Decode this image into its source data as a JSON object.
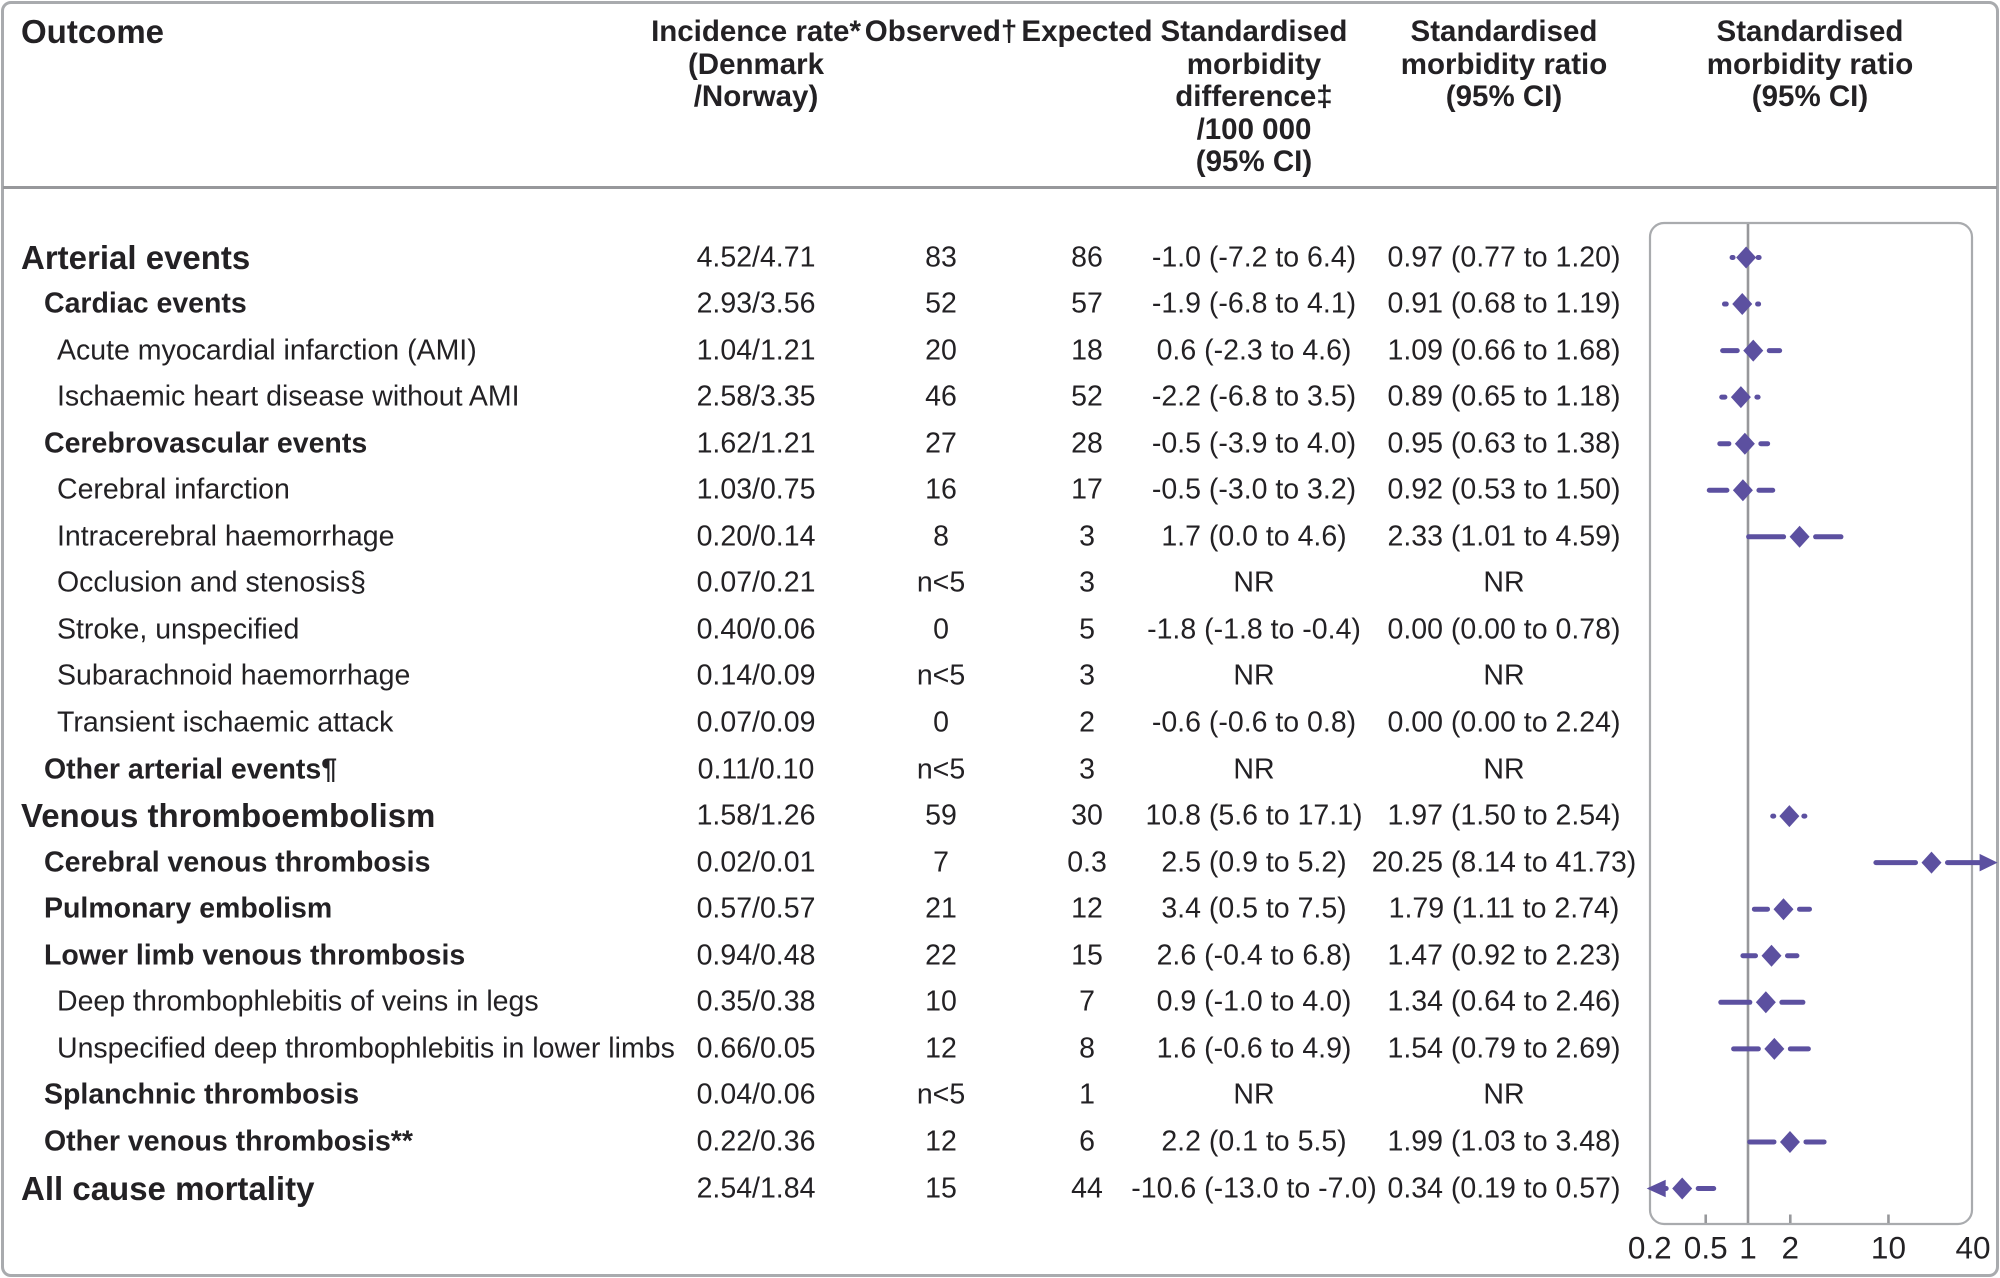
{
  "colors": {
    "accent_purple": "#5c50a0",
    "grid_gray": "#97989b",
    "border_gray": "#a9abae",
    "text": "#232124"
  },
  "chart_data": {
    "type": "forest",
    "title": "Standardised morbidity ratio (95% CI)",
    "columns": {
      "outcome": "Outcome",
      "incidence_lines": [
        "Incidence rate*",
        "(Denmark",
        "/Norway)"
      ],
      "observed": "Observed†",
      "expected": "Expected",
      "smd_lines": [
        "Standardised",
        "morbidity",
        "difference‡",
        "/100 000",
        "(95% CI)"
      ],
      "smr_lines": [
        "Standardised",
        "morbidity ratio",
        "(95% CI)"
      ],
      "plot_lines": [
        "Standardised",
        "morbidity ratio",
        "(95% CI)"
      ]
    },
    "x_axis": {
      "scale": "log",
      "min": 0.2,
      "max": 40,
      "reference_line": 1,
      "tick_labels": [
        "0.2",
        "0.5",
        "1",
        "2",
        "10",
        "40"
      ],
      "tick_values": [
        0.2,
        0.5,
        1,
        2,
        10,
        40
      ],
      "minor_tick_values": [
        0.5,
        2,
        10
      ],
      "legend_position": "none",
      "grid": false
    },
    "rows": [
      {
        "label": "Arterial events",
        "indent": 0,
        "bold": true,
        "large": true,
        "incidence": "4.52/4.71",
        "observed": "83",
        "expected": "86",
        "smd": "-1.0 (-7.2 to 6.4)",
        "smr": "0.97 (0.77 to 1.20)",
        "est": 0.97,
        "lo": 0.77,
        "hi": 1.2
      },
      {
        "label": "Cardiac events",
        "indent": 1,
        "bold": true,
        "large": false,
        "incidence": "2.93/3.56",
        "observed": "52",
        "expected": "57",
        "smd": "-1.9 (-6.8 to 4.1)",
        "smr": "0.91 (0.68 to 1.19)",
        "est": 0.91,
        "lo": 0.68,
        "hi": 1.19
      },
      {
        "label": "Acute myocardial infarction (AMI)",
        "indent": 2,
        "bold": false,
        "large": false,
        "incidence": "1.04/1.21",
        "observed": "20",
        "expected": "18",
        "smd": "0.6 (-2.3 to 4.6)",
        "smr": "1.09 (0.66 to 1.68)",
        "est": 1.09,
        "lo": 0.66,
        "hi": 1.68
      },
      {
        "label": "Ischaemic heart disease without AMI",
        "indent": 2,
        "bold": false,
        "large": false,
        "incidence": "2.58/3.35",
        "observed": "46",
        "expected": "52",
        "smd": "-2.2 (-6.8 to 3.5)",
        "smr": "0.89 (0.65 to 1.18)",
        "est": 0.89,
        "lo": 0.65,
        "hi": 1.18
      },
      {
        "label": "Cerebrovascular events",
        "indent": 1,
        "bold": true,
        "large": false,
        "incidence": "1.62/1.21",
        "observed": "27",
        "expected": "28",
        "smd": "-0.5 (-3.9 to 4.0)",
        "smr": "0.95 (0.63 to 1.38)",
        "est": 0.95,
        "lo": 0.63,
        "hi": 1.38
      },
      {
        "label": "Cerebral infarction",
        "indent": 2,
        "bold": false,
        "large": false,
        "incidence": "1.03/0.75",
        "observed": "16",
        "expected": "17",
        "smd": "-0.5 (-3.0 to 3.2)",
        "smr": "0.92 (0.53 to 1.50)",
        "est": 0.92,
        "lo": 0.53,
        "hi": 1.5
      },
      {
        "label": "Intracerebral haemorrhage",
        "indent": 2,
        "bold": false,
        "large": false,
        "incidence": "0.20/0.14",
        "observed": "8",
        "expected": "3",
        "smd": "1.7 (0.0 to 4.6)",
        "smr": "2.33 (1.01 to 4.59)",
        "est": 2.33,
        "lo": 1.01,
        "hi": 4.59
      },
      {
        "label": "Occlusion and stenosis§",
        "indent": 2,
        "bold": false,
        "large": false,
        "incidence": "0.07/0.21",
        "observed": "n<5",
        "expected": "3",
        "smd": "NR",
        "smr": "NR",
        "est": null,
        "lo": null,
        "hi": null
      },
      {
        "label": "Stroke, unspecified",
        "indent": 2,
        "bold": false,
        "large": false,
        "incidence": "0.40/0.06",
        "observed": "0",
        "expected": "5",
        "smd": "-1.8 (-1.8 to -0.4)",
        "smr": "0.00 (0.00 to 0.78)",
        "est": null,
        "lo": null,
        "hi": null
      },
      {
        "label": "Subarachnoid haemorrhage",
        "indent": 2,
        "bold": false,
        "large": false,
        "incidence": "0.14/0.09",
        "observed": "n<5",
        "expected": "3",
        "smd": "NR",
        "smr": "NR",
        "est": null,
        "lo": null,
        "hi": null
      },
      {
        "label": "Transient ischaemic attack",
        "indent": 2,
        "bold": false,
        "large": false,
        "incidence": "0.07/0.09",
        "observed": "0",
        "expected": "2",
        "smd": "-0.6 (-0.6 to 0.8)",
        "smr": "0.00 (0.00 to 2.24)",
        "est": null,
        "lo": null,
        "hi": null
      },
      {
        "label": "Other arterial events¶",
        "indent": 1,
        "bold": true,
        "large": false,
        "incidence": "0.11/0.10",
        "observed": "n<5",
        "expected": "3",
        "smd": "NR",
        "smr": "NR",
        "est": null,
        "lo": null,
        "hi": null
      },
      {
        "label": "Venous thromboembolism",
        "indent": 0,
        "bold": true,
        "large": true,
        "incidence": "1.58/1.26",
        "observed": "59",
        "expected": "30",
        "smd": "10.8 (5.6 to 17.1)",
        "smr": "1.97 (1.50 to 2.54)",
        "est": 1.97,
        "lo": 1.5,
        "hi": 2.54
      },
      {
        "label": "Cerebral venous thrombosis",
        "indent": 1,
        "bold": true,
        "large": false,
        "incidence": "0.02/0.01",
        "observed": "7",
        "expected": "0.3",
        "smd": "2.5 (0.9 to 5.2)",
        "smr": "20.25 (8.14 to 41.73)",
        "est": 20.25,
        "lo": 8.14,
        "hi": 41.73
      },
      {
        "label": "Pulmonary embolism",
        "indent": 1,
        "bold": true,
        "large": false,
        "incidence": "0.57/0.57",
        "observed": "21",
        "expected": "12",
        "smd": "3.4 (0.5 to 7.5)",
        "smr": "1.79 (1.11 to 2.74)",
        "est": 1.79,
        "lo": 1.11,
        "hi": 2.74
      },
      {
        "label": "Lower limb venous thrombosis",
        "indent": 1,
        "bold": true,
        "large": false,
        "incidence": "0.94/0.48",
        "observed": "22",
        "expected": "15",
        "smd": "2.6 (-0.4 to 6.8)",
        "smr": "1.47 (0.92 to 2.23)",
        "est": 1.47,
        "lo": 0.92,
        "hi": 2.23
      },
      {
        "label": "Deep thrombophlebitis of veins in legs",
        "indent": 2,
        "bold": false,
        "large": false,
        "incidence": "0.35/0.38",
        "observed": "10",
        "expected": "7",
        "smd": "0.9 (-1.0 to 4.0)",
        "smr": "1.34 (0.64 to 2.46)",
        "est": 1.34,
        "lo": 0.64,
        "hi": 2.46
      },
      {
        "label": "Unspecified deep thrombophlebitis in lower limbs",
        "indent": 2,
        "bold": false,
        "large": false,
        "incidence": "0.66/0.05",
        "observed": "12",
        "expected": "8",
        "smd": "1.6 (-0.6 to 4.9)",
        "smr": "1.54 (0.79 to 2.69)",
        "est": 1.54,
        "lo": 0.79,
        "hi": 2.69
      },
      {
        "label": "Splanchnic thrombosis",
        "indent": 1,
        "bold": true,
        "large": false,
        "incidence": "0.04/0.06",
        "observed": "n<5",
        "expected": "1",
        "smd": "NR",
        "smr": "NR",
        "est": null,
        "lo": null,
        "hi": null
      },
      {
        "label": "Other venous thrombosis**",
        "indent": 1,
        "bold": true,
        "large": false,
        "incidence": "0.22/0.36",
        "observed": "12",
        "expected": "6",
        "smd": "2.2 (0.1 to 5.5)",
        "smr": "1.99 (1.03 to 3.48)",
        "est": 1.99,
        "lo": 1.03,
        "hi": 3.48
      },
      {
        "label": "All cause mortality",
        "indent": 0,
        "bold": true,
        "large": true,
        "incidence": "2.54/1.84",
        "observed": "15",
        "expected": "44",
        "smd": "-10.6 (-13.0 to -7.0)",
        "smr": "0.34 (0.19 to 0.57)",
        "est": 0.34,
        "lo": 0.19,
        "hi": 0.57
      }
    ]
  }
}
